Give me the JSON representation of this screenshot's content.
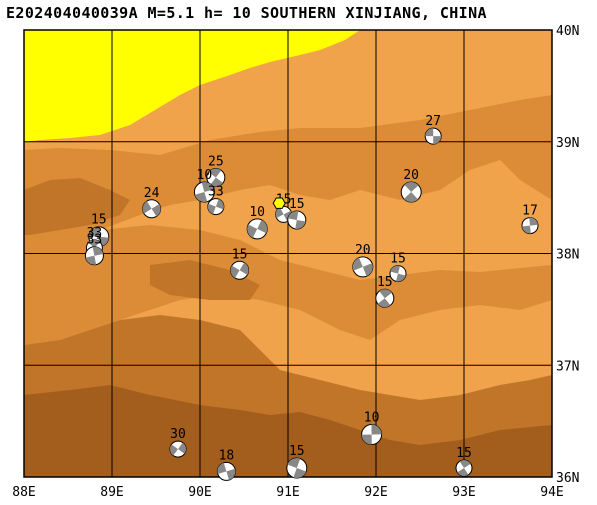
{
  "header": {
    "title": "E202404040039A M=5.1 h= 10 SOUTHERN XINJIANG, CHINA"
  },
  "axes": {
    "lon_labels": [
      "88E",
      "89E",
      "90E",
      "91E",
      "92E",
      "93E",
      "94E"
    ],
    "lat_labels": [
      "36N",
      "37N",
      "38N",
      "39N",
      "40N"
    ],
    "lon_range": [
      88,
      94
    ],
    "lat_range": [
      36,
      40
    ]
  },
  "colors": {
    "yellow_zone": "#ffff00",
    "low_plain": "#f0a34a",
    "mid_terrain": "#dc8c37",
    "high_terrain": "#c17529",
    "peak_terrain": "#a35e1e",
    "beachball_dark": "#888888",
    "epicenter_star": "#ffff00"
  },
  "epicenter": {
    "lon": 90.9,
    "lat": 38.45,
    "icon": "yellow-hexagon-icon"
  },
  "events": [
    {
      "depth": "27",
      "lon": 92.65,
      "lat": 39.05
    },
    {
      "depth": "25",
      "lon": 90.18,
      "lat": 38.68
    },
    {
      "depth": "10",
      "lon": 90.05,
      "lat": 38.55
    },
    {
      "depth": "33",
      "lon": 90.18,
      "lat": 38.42
    },
    {
      "depth": "24",
      "lon": 89.45,
      "lat": 38.4
    },
    {
      "depth": "15",
      "lon": 88.85,
      "lat": 38.15
    },
    {
      "depth": "33",
      "lon": 88.8,
      "lat": 38.05
    },
    {
      "depth": "33",
      "lon": 88.8,
      "lat": 37.98
    },
    {
      "depth": "10",
      "lon": 90.65,
      "lat": 38.22
    },
    {
      "depth": "15",
      "lon": 90.95,
      "lat": 38.35
    },
    {
      "depth": "15",
      "lon": 91.1,
      "lat": 38.3
    },
    {
      "depth": "20",
      "lon": 92.4,
      "lat": 38.55
    },
    {
      "depth": "17",
      "lon": 93.75,
      "lat": 38.25
    },
    {
      "depth": "15",
      "lon": 90.45,
      "lat": 37.85
    },
    {
      "depth": "20",
      "lon": 91.85,
      "lat": 37.88
    },
    {
      "depth": "15",
      "lon": 92.25,
      "lat": 37.82
    },
    {
      "depth": "15",
      "lon": 92.1,
      "lat": 37.6
    },
    {
      "depth": "10",
      "lon": 91.95,
      "lat": 36.38
    },
    {
      "depth": "30",
      "lon": 89.75,
      "lat": 36.25
    },
    {
      "depth": "18",
      "lon": 90.3,
      "lat": 36.05
    },
    {
      "depth": "15",
      "lon": 91.1,
      "lat": 36.08
    },
    {
      "depth": "15",
      "lon": 93.0,
      "lat": 36.08
    }
  ]
}
